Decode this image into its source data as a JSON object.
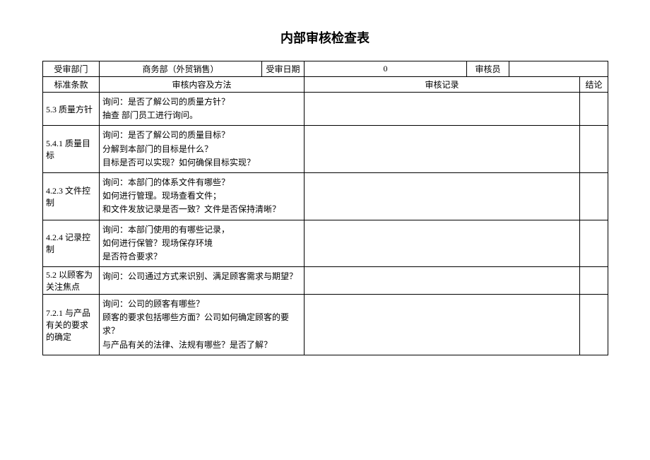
{
  "title": "内部审核检查表",
  "header": {
    "dept_label": "受审部门",
    "dept_value": "商务部（外贸销售）",
    "date_label": "受审日期",
    "date_value": "0",
    "auditor_label": "审核员",
    "auditor_value": ""
  },
  "section": {
    "clause_label": "标准条款",
    "method_label": "审核内容及方法",
    "record_label": "审核记录",
    "conclusion_label": "结论"
  },
  "rows": [
    {
      "clause": "5.3 质量方针",
      "method": "询问：是否了解公司的质量方针？\n抽查 部门员工进行询问。"
    },
    {
      "clause": "5.4.1 质量目标",
      "method": "询问：是否了解公司的质量目标？\n分解到本部门的目标是什么？\n目标是否可以实现？如何确保目标实现？"
    },
    {
      "clause": "4.2.3 文件控制",
      "method": "询问：本部门的体系文件有哪些？\n如何进行管理。现场查看文件；\n和文件发放记录是否一致？文件是否保持清晰？"
    },
    {
      "clause": "4.2.4 记录控制",
      "method": "询问：本部门使用的有哪些记录，\n如何进行保管？现场保存环境\n是否符合要求？"
    },
    {
      "clause": "5.2 以顾客为关注焦点",
      "method": "询问：公司通过方式来识别、满足顾客需求与期望？"
    },
    {
      "clause": "7.2.1 与产品有关的要求的确定",
      "method": "询问：公司的顾客有哪些？\n顾客的要求包括哪些方面？公司如何确定顾客的要求？\n与产品有关的法律、法规有哪些？是否了解？"
    }
  ]
}
